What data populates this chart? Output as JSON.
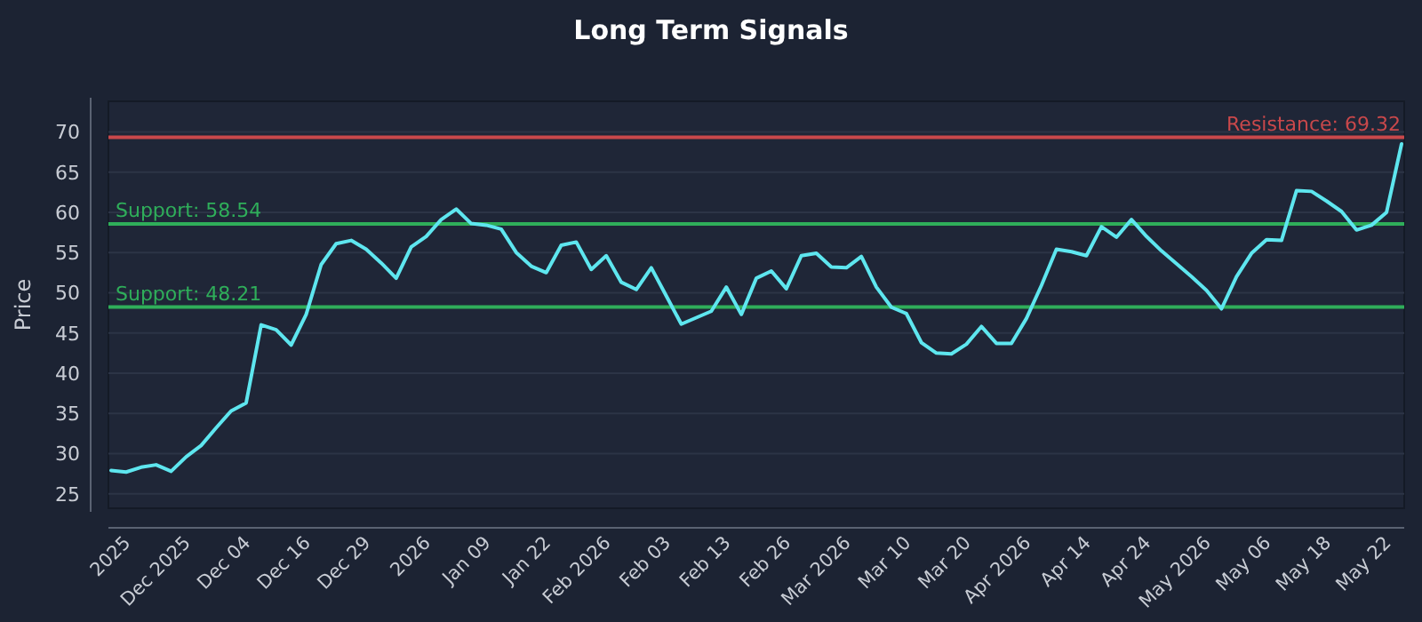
{
  "chart_data": {
    "type": "line",
    "title": "Long Term Signals",
    "ylabel": "Price",
    "categories": [
      null,
      "2025",
      null,
      null,
      null,
      "Dec 2025",
      null,
      null,
      null,
      "Dec 04",
      null,
      null,
      null,
      "Dec 16",
      null,
      null,
      null,
      "Dec 29",
      null,
      null,
      null,
      "2026",
      null,
      null,
      null,
      "Jan 09",
      null,
      null,
      null,
      "Jan 22",
      null,
      null,
      null,
      "Feb 2026",
      null,
      null,
      null,
      "Feb 03",
      null,
      null,
      null,
      "Feb 13",
      null,
      null,
      null,
      "Feb 26",
      null,
      null,
      null,
      "Mar 2026",
      null,
      null,
      null,
      "Mar 10",
      null,
      null,
      null,
      "Mar 20",
      null,
      null,
      null,
      "Apr 2026",
      null,
      null,
      null,
      "Apr 14",
      null,
      null,
      null,
      "Apr 24",
      null,
      null,
      null,
      "May 2026",
      null,
      null,
      null,
      "May 06",
      null,
      null,
      null,
      "May 18",
      null,
      null,
      null,
      "May 22",
      null
    ],
    "series": [
      {
        "color": "#5ee6ef",
        "values": [
          27.9,
          27.7,
          28.3,
          28.6,
          27.8,
          29.6,
          31.0,
          33.2,
          35.3,
          36.3,
          46.0,
          45.4,
          43.5,
          47.3,
          53.5,
          56.1,
          56.5,
          55.4,
          53.7,
          51.8,
          55.7,
          57.0,
          59.1,
          60.4,
          58.6,
          58.4,
          57.9,
          55.0,
          53.3,
          52.5,
          55.9,
          56.3,
          52.9,
          54.6,
          51.3,
          50.4,
          53.1,
          49.6,
          46.1,
          46.9,
          47.7,
          50.7,
          47.3,
          51.8,
          52.7,
          50.5,
          54.6,
          54.9,
          53.2,
          53.1,
          54.5,
          50.7,
          48.2,
          47.4,
          43.8,
          42.5,
          42.4,
          43.6,
          45.8,
          43.7,
          43.7,
          46.8,
          50.9,
          55.4,
          55.1,
          54.6,
          58.2,
          56.9,
          59.1,
          57.0,
          55.2,
          53.6,
          52.0,
          50.3,
          48.0,
          52.0,
          54.9,
          56.6,
          56.5,
          62.7,
          62.6,
          61.4,
          60.1,
          57.8,
          58.4,
          60.0,
          68.5
        ]
      }
    ],
    "ylim": [
      23.2,
      73.8
    ],
    "yticks": [
      25,
      30,
      35,
      40,
      45,
      50,
      55,
      60,
      65,
      70
    ],
    "grid": "y",
    "ref_lines": [
      {
        "axis": "y",
        "value": 69.32,
        "label": "Resistance: 69.32",
        "color": "#c9484b"
      },
      {
        "axis": "y",
        "value": 58.54,
        "label": "Support: 58.54",
        "color": "#2fae5a"
      },
      {
        "axis": "y",
        "value": 48.21,
        "label": "Support: 48.21",
        "color": "#2fae5a"
      }
    ]
  }
}
